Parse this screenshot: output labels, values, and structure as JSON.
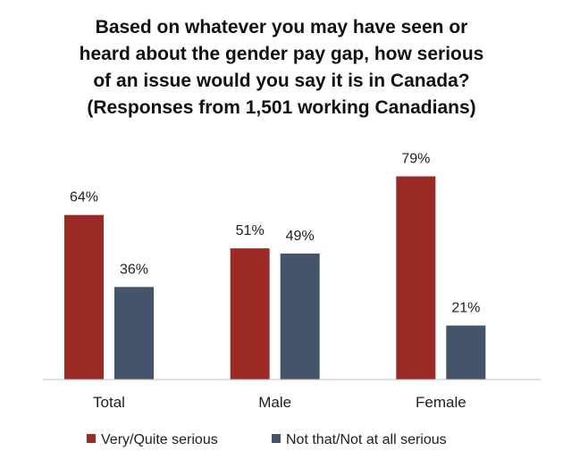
{
  "chart_data": {
    "type": "bar",
    "title_lines": [
      "Based on whatever you may have seen or",
      "heard about the gender pay gap, how serious",
      "of an issue would you say it is in Canada?",
      "(Responses from 1,501 working Canadians)"
    ],
    "categories": [
      "Total",
      "Male",
      "Female"
    ],
    "series": [
      {
        "name": "Very/Quite serious",
        "values": [
          64,
          51,
          79
        ],
        "labels": [
          "64%",
          "51%",
          "79%"
        ],
        "color": "#9b2a25"
      },
      {
        "name": "Not that/Not at all serious",
        "values": [
          36,
          49,
          21
        ],
        "labels": [
          "36%",
          "49%",
          "21%"
        ],
        "color": "#44546a"
      }
    ],
    "xlabel": "",
    "ylabel": "",
    "ylim": [
      0,
      100
    ],
    "grid": false,
    "legend_position": "bottom"
  }
}
